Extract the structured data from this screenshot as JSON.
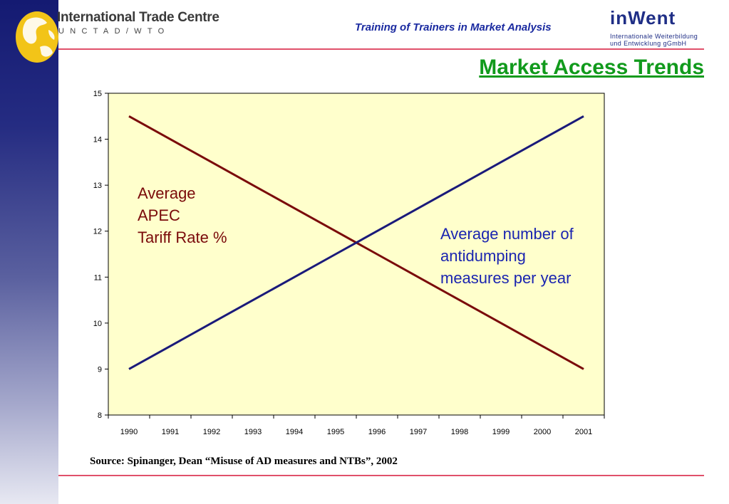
{
  "header": {
    "org_name": "International Trade Centre",
    "org_sub": "UNCTAD/WTO",
    "tagline": "Training of  Trainers in Market Analysis",
    "partner_word": "inWent",
    "partner_sub1": "Internationale Weiterbildung",
    "partner_sub2": "und Entwicklung gGmbH"
  },
  "title": "Market Access Trends",
  "source": "Source: Spinanger, Dean “Misuse of AD measures and NTBs”, 2002",
  "annotations": {
    "tariff": [
      "Average",
      "APEC",
      "Tariff Rate %"
    ],
    "antidumping": [
      "Average number of",
      "antidumping",
      "measures per year"
    ]
  },
  "colors": {
    "plot_background": "#ffffcc",
    "tariff_line": "#7a0a0a",
    "antidumping_line": "#1a1a7a",
    "title": "#119a1c",
    "rule": "#e0506a"
  },
  "chart_data": {
    "type": "line",
    "title": "",
    "xlabel": "",
    "ylabel": "",
    "x": [
      1990,
      1991,
      1992,
      1993,
      1994,
      1995,
      1996,
      1997,
      1998,
      1999,
      2000,
      2001
    ],
    "categories": [
      "1990",
      "1991",
      "1992",
      "1993",
      "1994",
      "1995",
      "1996",
      "1997",
      "1998",
      "1999",
      "2000",
      "2001"
    ],
    "ylim": [
      8,
      15
    ],
    "yticks": [
      8,
      9,
      10,
      11,
      12,
      13,
      14,
      15
    ],
    "series": [
      {
        "key": "tariff",
        "values": [
          14.5,
          14.0,
          13.5,
          13.0,
          12.5,
          12.0,
          11.5,
          11.0,
          10.5,
          10.0,
          9.5,
          9.0
        ],
        "color": "#7a0a0a"
      },
      {
        "key": "antidumping",
        "values": [
          9.0,
          9.5,
          10.0,
          10.5,
          11.0,
          11.5,
          12.0,
          12.5,
          13.0,
          13.5,
          14.0,
          14.5
        ],
        "color": "#1a1a7a"
      }
    ],
    "grid": false,
    "legend": "none"
  }
}
